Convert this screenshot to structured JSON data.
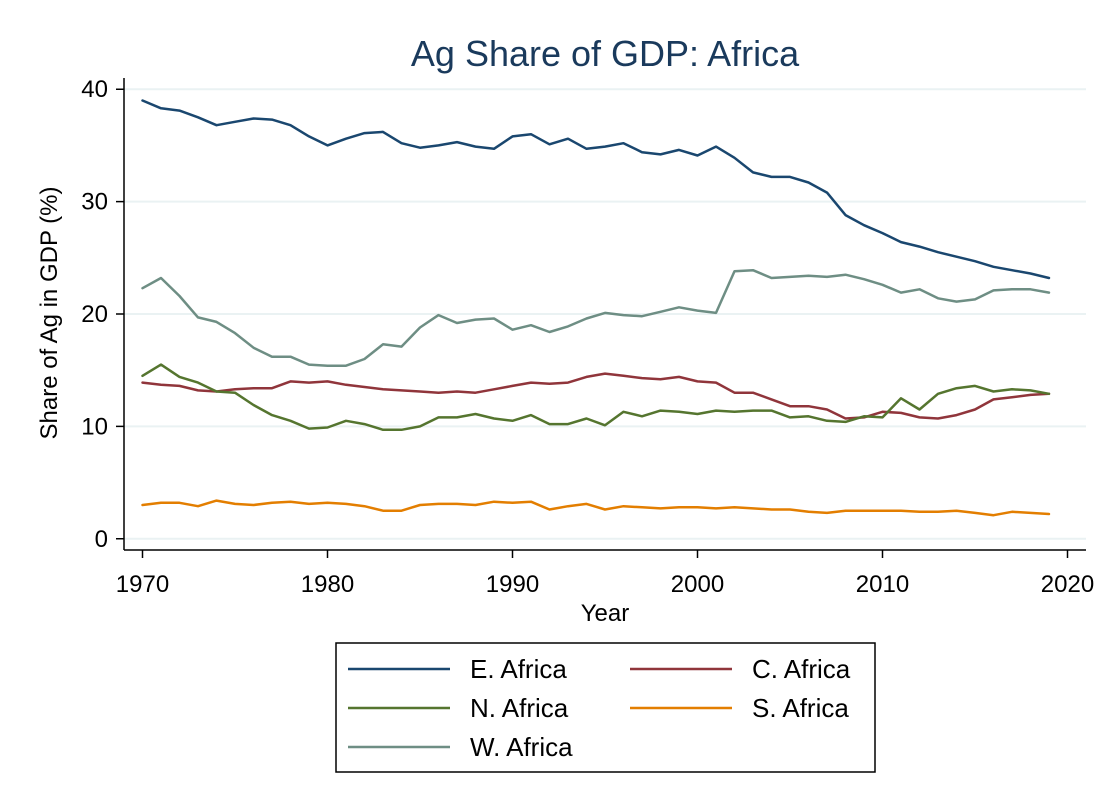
{
  "chart_data": {
    "type": "line",
    "title": "Ag Share of GDP: Africa",
    "xlabel": "Year",
    "ylabel": "Share of Ag in GDP (%)",
    "xlim": [
      1969,
      2021
    ],
    "ylim": [
      -1,
      41
    ],
    "xticks": [
      1970,
      1980,
      1990,
      2000,
      2010,
      2020
    ],
    "yticks": [
      0,
      10,
      20,
      30,
      40
    ],
    "grid": true,
    "legend_position": "bottom",
    "x": [
      1970,
      1971,
      1972,
      1973,
      1974,
      1975,
      1976,
      1977,
      1978,
      1979,
      1980,
      1981,
      1982,
      1983,
      1984,
      1985,
      1986,
      1987,
      1988,
      1989,
      1990,
      1991,
      1992,
      1993,
      1994,
      1995,
      1996,
      1997,
      1998,
      1999,
      2000,
      2001,
      2002,
      2003,
      2004,
      2005,
      2006,
      2007,
      2008,
      2009,
      2010,
      2011,
      2012,
      2013,
      2014,
      2015,
      2016,
      2017,
      2018,
      2019
    ],
    "series": [
      {
        "name": "E. Africa",
        "color": "#1a476f",
        "values": [
          39.0,
          38.3,
          38.1,
          37.5,
          36.8,
          37.1,
          37.4,
          37.3,
          36.8,
          35.8,
          35.0,
          35.6,
          36.1,
          36.2,
          35.2,
          34.8,
          35.0,
          35.3,
          34.9,
          34.7,
          35.8,
          36.0,
          35.1,
          35.6,
          34.7,
          34.9,
          35.2,
          34.4,
          34.2,
          34.6,
          34.1,
          34.9,
          33.9,
          32.6,
          32.2,
          32.2,
          31.7,
          30.8,
          28.8,
          27.9,
          27.2,
          26.4,
          26.0,
          25.5,
          25.1,
          24.7,
          24.2,
          23.9,
          23.6,
          23.2
        ]
      },
      {
        "name": "C. Africa",
        "color": "#90353b",
        "values": [
          13.9,
          13.7,
          13.6,
          13.2,
          13.1,
          13.3,
          13.4,
          13.4,
          14.0,
          13.9,
          14.0,
          13.7,
          13.5,
          13.3,
          13.2,
          13.1,
          13.0,
          13.1,
          13.0,
          13.3,
          13.6,
          13.9,
          13.8,
          13.9,
          14.4,
          14.7,
          14.5,
          14.3,
          14.2,
          14.4,
          14.0,
          13.9,
          13.0,
          13.0,
          12.4,
          11.8,
          11.8,
          11.5,
          10.7,
          10.8,
          11.3,
          11.2,
          10.8,
          10.7,
          11.0,
          11.5,
          12.4,
          12.6,
          12.8,
          12.9
        ]
      },
      {
        "name": "N. Africa",
        "color": "#55752f",
        "values": [
          14.5,
          15.5,
          14.4,
          13.9,
          13.1,
          13.0,
          11.9,
          11.0,
          10.5,
          9.8,
          9.9,
          10.5,
          10.2,
          9.7,
          9.7,
          10.0,
          10.8,
          10.8,
          11.1,
          10.7,
          10.5,
          11.0,
          10.2,
          10.2,
          10.7,
          10.1,
          11.3,
          10.9,
          11.4,
          11.3,
          11.1,
          11.4,
          11.3,
          11.4,
          11.4,
          10.8,
          10.9,
          10.5,
          10.4,
          10.9,
          10.8,
          12.5,
          11.5,
          12.9,
          13.4,
          13.6,
          13.1,
          13.3,
          13.2,
          12.9
        ]
      },
      {
        "name": "S. Africa",
        "color": "#e37e00",
        "values": [
          3.0,
          3.2,
          3.2,
          2.9,
          3.4,
          3.1,
          3.0,
          3.2,
          3.3,
          3.1,
          3.2,
          3.1,
          2.9,
          2.5,
          2.5,
          3.0,
          3.1,
          3.1,
          3.0,
          3.3,
          3.2,
          3.3,
          2.6,
          2.9,
          3.1,
          2.6,
          2.9,
          2.8,
          2.7,
          2.8,
          2.8,
          2.7,
          2.8,
          2.7,
          2.6,
          2.6,
          2.4,
          2.3,
          2.5,
          2.5,
          2.5,
          2.5,
          2.4,
          2.4,
          2.5,
          2.3,
          2.1,
          2.4,
          2.3,
          2.2
        ]
      },
      {
        "name": "W. Africa",
        "color": "#6e8e84",
        "values": [
          22.3,
          23.2,
          21.6,
          19.7,
          19.3,
          18.3,
          17.0,
          16.2,
          16.2,
          15.5,
          15.4,
          15.4,
          16.0,
          17.3,
          17.1,
          18.8,
          19.9,
          19.2,
          19.5,
          19.6,
          18.6,
          19.0,
          18.4,
          18.9,
          19.6,
          20.1,
          19.9,
          19.8,
          20.2,
          20.6,
          20.3,
          20.1,
          23.8,
          23.9,
          23.2,
          23.3,
          23.4,
          23.3,
          23.5,
          23.1,
          22.6,
          21.9,
          22.2,
          21.4,
          21.1,
          21.3,
          22.1,
          22.2,
          22.2,
          21.9
        ]
      }
    ]
  }
}
